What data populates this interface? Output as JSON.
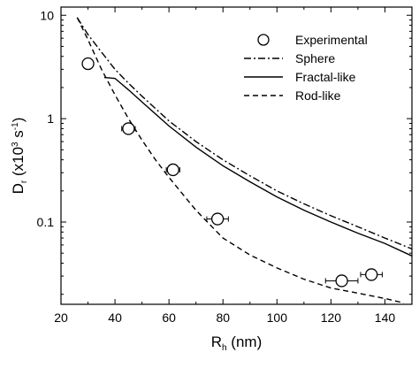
{
  "chart_data": {
    "type": "scatter",
    "x_scale": "linear",
    "y_scale": "log",
    "xlim": [
      20,
      150
    ],
    "ylim": [
      0.016,
      12
    ],
    "x_ticks": [
      20,
      40,
      60,
      80,
      100,
      120,
      140
    ],
    "y_ticks": [
      0.1,
      1,
      10
    ],
    "y_tick_labels": [
      "0.1",
      "1",
      "10"
    ],
    "xlabel": {
      "main": "R",
      "sub": "h",
      "tail": " (nm)"
    },
    "ylabel": {
      "main": "D",
      "sub": "r",
      "part2": " (x10",
      "sup": "3",
      "part3": " s",
      "sup2": "-1",
      "part4": ")"
    },
    "legend_position": "top-right",
    "series": [
      {
        "name": "Experimental",
        "kind": "points",
        "marker": "open-circle",
        "x": [
          30,
          45,
          61.5,
          78,
          124,
          135
        ],
        "y": [
          3.4,
          0.8,
          0.32,
          0.107,
          0.027,
          0.031
        ],
        "x_err": [
          1.5,
          2.5,
          2.5,
          4,
          6,
          4
        ]
      },
      {
        "name": "Sphere",
        "kind": "line",
        "style": "dash-dot",
        "x": [
          26,
          30,
          35,
          40,
          45,
          50,
          60,
          70,
          80,
          90,
          100,
          110,
          120,
          130,
          140,
          150
        ],
        "y": [
          9.5,
          6.5,
          4.4,
          3.0,
          2.2,
          1.65,
          0.95,
          0.6,
          0.4,
          0.28,
          0.2,
          0.15,
          0.115,
          0.09,
          0.07,
          0.055
        ]
      },
      {
        "name": "Fractal-like",
        "kind": "line",
        "style": "solid",
        "x": [
          36,
          40,
          45,
          50,
          60,
          70,
          80,
          90,
          100,
          110,
          120,
          130,
          140,
          150
        ],
        "y": [
          2.5,
          2.45,
          1.9,
          1.45,
          0.85,
          0.53,
          0.35,
          0.245,
          0.175,
          0.13,
          0.1,
          0.078,
          0.062,
          0.047
        ]
      },
      {
        "name": "Rod-like",
        "kind": "line",
        "style": "dashed",
        "x": [
          26,
          30,
          35,
          40,
          45,
          50,
          55,
          60,
          70,
          80,
          90,
          100,
          110,
          120,
          130,
          140,
          147
        ],
        "y": [
          9.5,
          5.8,
          3.0,
          1.7,
          1.0,
          0.62,
          0.4,
          0.27,
          0.13,
          0.07,
          0.048,
          0.036,
          0.028,
          0.023,
          0.0205,
          0.0182,
          0.0165
        ]
      }
    ]
  }
}
